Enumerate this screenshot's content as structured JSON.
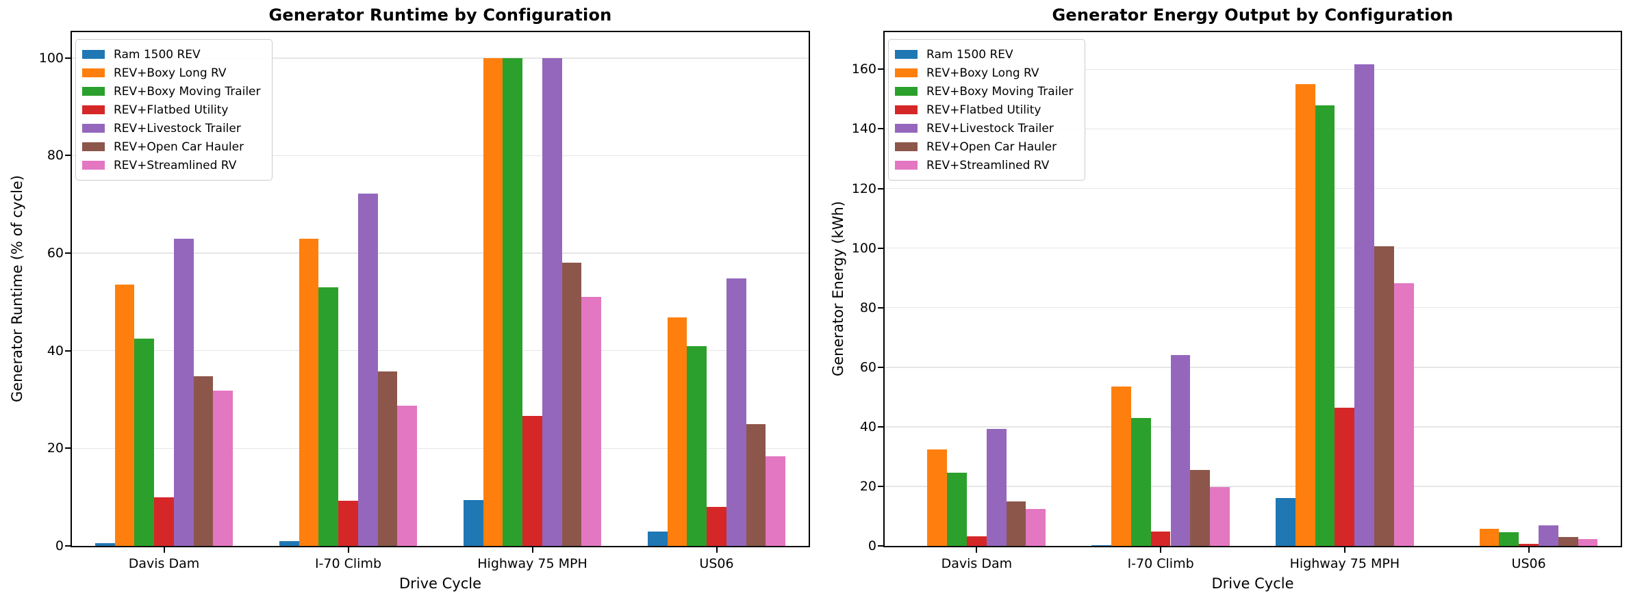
{
  "chart_data": [
    {
      "type": "bar",
      "title": "Generator Runtime by Configuration",
      "xlabel": "Drive Cycle",
      "ylabel": "Generator Runtime (% of cycle)",
      "categories": [
        "Davis Dam",
        "I-70 Climb",
        "Highway 75 MPH",
        "US06"
      ],
      "series": [
        {
          "name": "Ram 1500 REV",
          "color": "#1f77b4",
          "values": [
            0.5,
            1.0,
            9.4,
            3.0
          ]
        },
        {
          "name": "REV+Boxy Long RV",
          "color": "#ff7f0e",
          "values": [
            53.5,
            63.0,
            100.0,
            46.9
          ]
        },
        {
          "name": "REV+Boxy Moving Trailer",
          "color": "#2ca02c",
          "values": [
            42.5,
            53.0,
            100.0,
            41.0
          ]
        },
        {
          "name": "REV+Flatbed Utility",
          "color": "#d62728",
          "values": [
            10.0,
            9.3,
            26.6,
            8.0
          ]
        },
        {
          "name": "REV+Livestock Trailer",
          "color": "#9467bd",
          "values": [
            63.0,
            72.2,
            100.0,
            54.8
          ]
        },
        {
          "name": "REV+Open Car Hauler",
          "color": "#8c564b",
          "values": [
            34.8,
            35.7,
            58.0,
            25.0
          ]
        },
        {
          "name": "REV+Streamlined RV",
          "color": "#e377c2",
          "values": [
            31.8,
            28.8,
            51.0,
            18.4
          ]
        }
      ],
      "ylim": [
        0,
        105.3
      ],
      "yticks": [
        0,
        20,
        40,
        60,
        80,
        100
      ],
      "grid": true,
      "legend_position": "upper left"
    },
    {
      "type": "bar",
      "title": "Generator Energy Output by Configuration",
      "xlabel": "Drive Cycle",
      "ylabel": "Generator Energy (kWh)",
      "categories": [
        "Davis Dam",
        "I-70 Climb",
        "Highway 75 MPH",
        "US06"
      ],
      "series": [
        {
          "name": "Ram 1500 REV",
          "color": "#1f77b4",
          "values": [
            0.1,
            0.3,
            16.0,
            0.1
          ]
        },
        {
          "name": "REV+Boxy Long RV",
          "color": "#ff7f0e",
          "values": [
            32.3,
            53.5,
            155.0,
            5.8
          ]
        },
        {
          "name": "REV+Boxy Moving Trailer",
          "color": "#2ca02c",
          "values": [
            24.6,
            43.0,
            148.0,
            4.6
          ]
        },
        {
          "name": "REV+Flatbed Utility",
          "color": "#d62728",
          "values": [
            3.3,
            4.8,
            46.5,
            0.7
          ]
        },
        {
          "name": "REV+Livestock Trailer",
          "color": "#9467bd",
          "values": [
            39.3,
            64.0,
            161.8,
            7.0
          ]
        },
        {
          "name": "REV+Open Car Hauler",
          "color": "#8c564b",
          "values": [
            15.0,
            25.5,
            100.7,
            3.0
          ]
        },
        {
          "name": "REV+Streamlined RV",
          "color": "#e377c2",
          "values": [
            12.3,
            19.7,
            88.3,
            2.3
          ]
        }
      ],
      "ylim": [
        0,
        172.5
      ],
      "yticks": [
        0,
        20,
        40,
        60,
        80,
        100,
        120,
        140,
        160
      ],
      "grid": true,
      "legend_position": "upper left"
    }
  ]
}
